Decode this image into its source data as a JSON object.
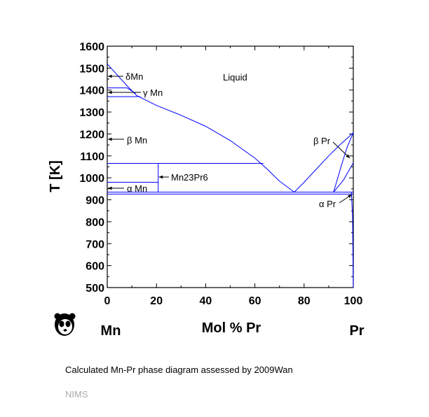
{
  "chart_data": {
    "type": "line",
    "ylabel": "T [K]",
    "xlabel": "Mol % Pr",
    "xlim": [
      0,
      100
    ],
    "ylim": [
      500,
      1600
    ],
    "x_ticks": [
      0,
      20,
      40,
      60,
      80,
      100
    ],
    "y_ticks": [
      500,
      600,
      700,
      800,
      900,
      1000,
      1100,
      1200,
      1300,
      1400,
      1500,
      1600
    ],
    "left_element": "Mn",
    "right_element": "Pr",
    "line_color": "#0000ff",
    "phase_labels": {
      "liquid": "Liquid",
      "delta_mn": "δMn",
      "gamma_mn": "γ Mn",
      "beta_mn": "β Mn",
      "alpha_mn": "α Mn",
      "compound": "Mn23Pr6",
      "beta_pr": "β Pr",
      "alpha_pr": "α Pr"
    },
    "series": [
      {
        "points": [
          [
            0,
            1519
          ],
          [
            4,
            1470
          ],
          [
            8,
            1420
          ],
          [
            12,
            1375
          ],
          [
            20,
            1330
          ],
          [
            30,
            1285
          ],
          [
            40,
            1235
          ],
          [
            50,
            1170
          ],
          [
            60,
            1090
          ],
          [
            65,
            1040
          ],
          [
            70,
            985
          ],
          [
            76,
            935
          ]
        ]
      },
      {
        "points": [
          [
            76,
            935
          ],
          [
            80,
            980
          ],
          [
            85,
            1040
          ],
          [
            90,
            1100
          ],
          [
            95,
            1155
          ],
          [
            100,
            1205
          ]
        ]
      },
      {
        "points": [
          [
            0,
            1410
          ],
          [
            8,
            1410
          ],
          [
            11.5,
            1385
          ]
        ]
      },
      {
        "points": [
          [
            0,
            1370
          ],
          [
            13.5,
            1370
          ]
        ]
      },
      {
        "points": [
          [
            0,
            1066
          ],
          [
            63.5,
            1066
          ]
        ]
      },
      {
        "points": [
          [
            0,
            980
          ],
          [
            20.7,
            980
          ]
        ]
      },
      {
        "points": [
          [
            20.7,
            1066
          ],
          [
            20.7,
            935
          ]
        ]
      },
      {
        "points": [
          [
            0,
            935
          ],
          [
            100,
            935
          ]
        ]
      },
      {
        "points": [
          [
            0,
            926
          ],
          [
            100,
            926
          ]
        ]
      },
      {
        "points": [
          [
            92,
            935
          ],
          [
            95,
            1050
          ],
          [
            97.5,
            1140
          ],
          [
            100,
            1205
          ]
        ]
      },
      {
        "points": [
          [
            92,
            935
          ],
          [
            96,
            990
          ],
          [
            100,
            1068
          ]
        ]
      },
      {
        "points": [
          [
            99.2,
            935
          ],
          [
            99.7,
            830
          ],
          [
            100,
            500
          ]
        ]
      }
    ]
  },
  "caption": "Calculated Mn-Pr phase diagram assessed by 2009Wan",
  "credit": "NIMS",
  "logo_icon": "panda-logo-icon"
}
